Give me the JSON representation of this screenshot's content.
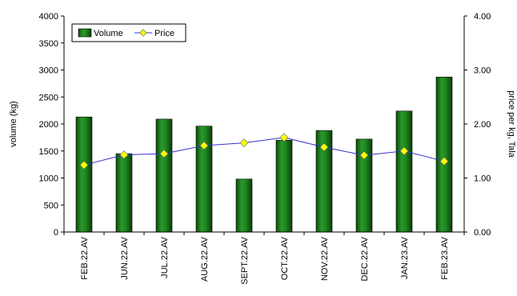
{
  "chart_data": {
    "type": "bar",
    "title": "",
    "categories": [
      "FEB.22.AV",
      "JUN.22.AV",
      "JUL.22.AV",
      "AUG.22.AV",
      "SEPT.22.AV",
      "OCT.22.AV",
      "NOV.22.AV",
      "DEC.22.AV",
      "JAN.23.AV",
      "FEB.23.AV"
    ],
    "series": [
      {
        "name": "Volume",
        "type": "bar",
        "axis": "left",
        "color": "#1a7a1a",
        "values": [
          2130,
          1450,
          2090,
          1960,
          980,
          1700,
          1880,
          1720,
          2240,
          2870
        ]
      },
      {
        "name": "Price",
        "type": "line",
        "axis": "right",
        "line_color": "#3333cc",
        "marker_color": "#ffff00",
        "values": [
          1.24,
          1.43,
          1.45,
          1.6,
          1.65,
          1.75,
          1.57,
          1.42,
          1.5,
          1.31
        ]
      }
    ],
    "ylabel": "volume (kg)",
    "ylim": [
      0,
      4000
    ],
    "yticks": [
      "0",
      "500",
      "1000",
      "1500",
      "2000",
      "2500",
      "3000",
      "3500",
      "4000"
    ],
    "y2label": "price per kg, Tala",
    "y2lim": [
      0,
      4
    ],
    "y2ticks": [
      "0.00",
      "1.00",
      "2.00",
      "3.00",
      "4.00"
    ],
    "legend": {
      "position": "top-left",
      "entries": [
        "Volume",
        "Price"
      ]
    },
    "grid": false
  }
}
